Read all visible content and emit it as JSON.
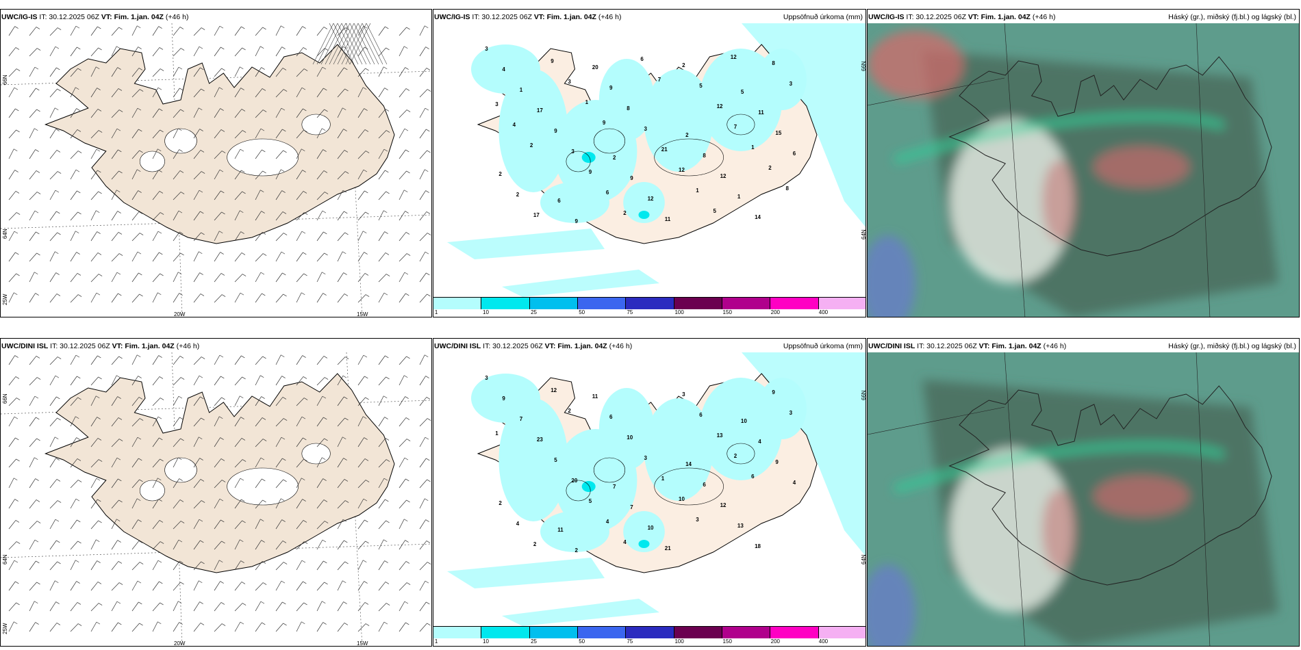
{
  "rows": [
    {
      "model": "UWC/IG-IS",
      "issue": "IT: 30.12.2025 06Z",
      "vt_label": "VT:",
      "vt": "Fim. 1.jan. 04Z",
      "lead": "(+46 h)"
    },
    {
      "model": "UWC/DINI ISL",
      "issue": "IT: 30.12.2025 06Z",
      "vt_label": "VT:",
      "vt": "Fim. 1.jan. 04Z",
      "lead": "(+46 h)"
    }
  ],
  "titles": {
    "precip": "Uppsöfnuð úrkoma (mm)",
    "cloud": "Háský (gr.), miðský (fj.bl.) og lágský (bl.)"
  },
  "axes": {
    "lon_20": "20W",
    "lon_15": "15W",
    "lat_66": "66N",
    "lat_64": "64N",
    "lon_25": "25W"
  },
  "colorbar": {
    "ticks": [
      "1",
      "10",
      "25",
      "50",
      "75",
      "100",
      "150",
      "200",
      "400"
    ],
    "colors": [
      "#b4fdfd",
      "#00e8ee",
      "#00bfee",
      "#3b66ef",
      "#2b2bbf",
      "#6b0050",
      "#b0008c",
      "#ff00c3",
      "#f5b0f3"
    ]
  },
  "precip_labels": {
    "top": [
      "3",
      "2",
      "5",
      "6",
      "2",
      "4",
      "9",
      "11",
      "9",
      "8",
      "1",
      "12",
      "15",
      "20",
      "12",
      "17",
      "11",
      "6",
      "9",
      "1",
      "9",
      "2",
      "2",
      "8",
      "14",
      "3",
      "5",
      "2",
      "3",
      "8",
      "9",
      "12",
      "17",
      "21",
      "3",
      "6",
      "7",
      "9",
      "12",
      "3",
      "2",
      "1",
      "3",
      "1",
      "4",
      "6",
      "2",
      "1",
      "5",
      "2",
      "7",
      "8",
      "9",
      "12"
    ],
    "bottom": [
      "3",
      "7",
      "10",
      "11",
      "14",
      "9",
      "7",
      "4",
      "2",
      "6",
      "7",
      "10",
      "9",
      "11",
      "12",
      "23",
      "21",
      "4",
      "6",
      "13",
      "5",
      "3",
      "2",
      "10",
      "18",
      "20",
      "6",
      "4",
      "3",
      "9",
      "5",
      "13",
      "2",
      "1",
      "3",
      "4",
      "2",
      "12",
      "10",
      "1",
      "4",
      "6",
      "2",
      "3"
    ]
  },
  "colors": {
    "land": "#f2e5d6",
    "precip_land": "#fbeee2",
    "cloud_sea": "#5e9c8c",
    "cloud_land": "#4b6d5e"
  }
}
